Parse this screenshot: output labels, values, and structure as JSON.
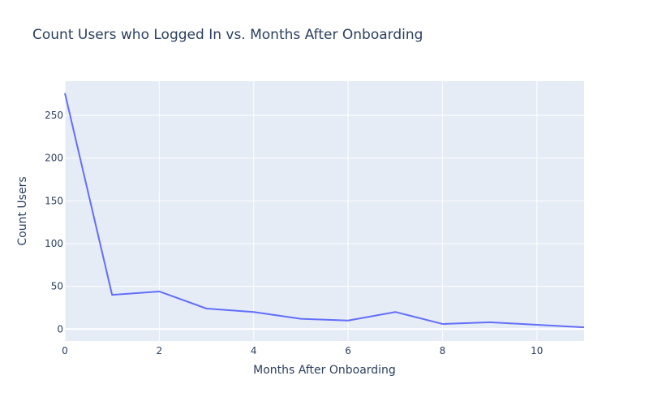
{
  "chart_data": {
    "type": "line",
    "title": "Count Users who Logged In vs. Months After Onboarding",
    "xlabel": "Months After Onboarding",
    "ylabel": "Count Users",
    "x": [
      0,
      1,
      2,
      3,
      4,
      5,
      6,
      7,
      8,
      9,
      10,
      11
    ],
    "series": [
      {
        "values": [
          276,
          40,
          44,
          24,
          20,
          12,
          10,
          20,
          6,
          8,
          5,
          2
        ]
      }
    ],
    "xlim": [
      0,
      11
    ],
    "ylim": [
      -14,
      290
    ],
    "xticks": [
      0,
      2,
      4,
      6,
      8,
      10
    ],
    "xtick_labels": [
      "0",
      "2",
      "4",
      "6",
      "8",
      "10"
    ],
    "yticks": [
      0,
      50,
      100,
      150,
      200,
      250
    ],
    "ytick_labels": [
      "0",
      "50",
      "100",
      "150",
      "200",
      "250"
    ],
    "grid": true,
    "colors": {
      "plot_background": "#e5ecf6",
      "grid": "#ffffff",
      "line": "#636efa",
      "text": "#2a3f5f"
    }
  }
}
